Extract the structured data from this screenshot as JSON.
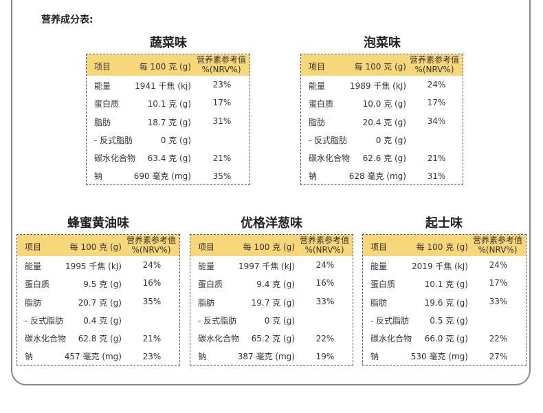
{
  "heading": "营养成分表:",
  "columns": {
    "item": "项目",
    "per100": "每 100 克 (g)",
    "nrv_line1": "营养素参考值",
    "nrv_line2": "%(NRV%)"
  },
  "cards": [
    {
      "flavor": "蔬菜味",
      "rows": [
        {
          "item": "能量",
          "value": "1941 千焦 (kj)",
          "nrv": "23%"
        },
        {
          "item": "蛋白质",
          "value": "10.1 克 (g)",
          "nrv": "17%"
        },
        {
          "item": "脂肪",
          "value": "18.7 克 (g)",
          "nrv": "31%"
        },
        {
          "item": "- 反式脂肪",
          "value": "0 克 (g)",
          "nrv": ""
        },
        {
          "item": "碳水化合物",
          "value": "63.4 克 (g)",
          "nrv": "21%"
        },
        {
          "item": "钠",
          "value": "690 毫克 (mg)",
          "nrv": "35%"
        }
      ]
    },
    {
      "flavor": "泡菜味",
      "rows": [
        {
          "item": "能量",
          "value": "1989 千焦 (kJ)",
          "nrv": "24%"
        },
        {
          "item": "蛋白质",
          "value": "10.0 克 (g)",
          "nrv": "17%"
        },
        {
          "item": "脂肪",
          "value": "20.4 克 (g)",
          "nrv": "34%"
        },
        {
          "item": "- 反式脂肪",
          "value": "0 克 (g)",
          "nrv": ""
        },
        {
          "item": "碳水化合物",
          "value": "62.6 克 (g)",
          "nrv": "21%"
        },
        {
          "item": "钠",
          "value": "628 毫克 (mg)",
          "nrv": "31%"
        }
      ]
    },
    {
      "flavor": "蜂蜜黄油味",
      "rows": [
        {
          "item": "能量",
          "value": "1995 千焦 (kJ)",
          "nrv": "24%"
        },
        {
          "item": "蛋白质",
          "value": "9.5 克 (g)",
          "nrv": "16%"
        },
        {
          "item": "脂肪",
          "value": "20.7 克 (g)",
          "nrv": "35%"
        },
        {
          "item": "- 反式脂肪",
          "value": "0.4 克 (g)",
          "nrv": ""
        },
        {
          "item": "碳水化合物",
          "value": "62.8 克 (g)",
          "nrv": "21%"
        },
        {
          "item": "钠",
          "value": "457 毫克 (mg)",
          "nrv": "23%"
        }
      ]
    },
    {
      "flavor": "优格洋葱味",
      "rows": [
        {
          "item": "能量",
          "value": "1997 千焦 (kJ)",
          "nrv": "24%"
        },
        {
          "item": "蛋白质",
          "value": "9.4 克 (g)",
          "nrv": "16%"
        },
        {
          "item": "脂肪",
          "value": "19.7 克 (g)",
          "nrv": "33%"
        },
        {
          "item": "- 反式脂肪",
          "value": "0 克 (g)",
          "nrv": ""
        },
        {
          "item": "碳水化合物",
          "value": "65.2 克 (g)",
          "nrv": "22%"
        },
        {
          "item": "钠",
          "value": "387 毫克 (mg)",
          "nrv": "19%"
        }
      ]
    },
    {
      "flavor": "起士味",
      "rows": [
        {
          "item": "能量",
          "value": "2019 千焦 (kJ)",
          "nrv": "24%"
        },
        {
          "item": "蛋白质",
          "value": "10.1 克 (g)",
          "nrv": "17%"
        },
        {
          "item": "脂肪",
          "value": "19.6 克 (g)",
          "nrv": "33%"
        },
        {
          "item": "- 反式脂肪",
          "value": "0.5 克 (g)",
          "nrv": ""
        },
        {
          "item": "碳水化合物",
          "value": "66.0 克 (g)",
          "nrv": "22%"
        },
        {
          "item": "钠",
          "value": "530 毫克 (mg)",
          "nrv": "27%"
        }
      ]
    }
  ],
  "colors": {
    "header_bg": "#f8d77a",
    "border": "#555555",
    "frame": "#8a8a8a"
  }
}
